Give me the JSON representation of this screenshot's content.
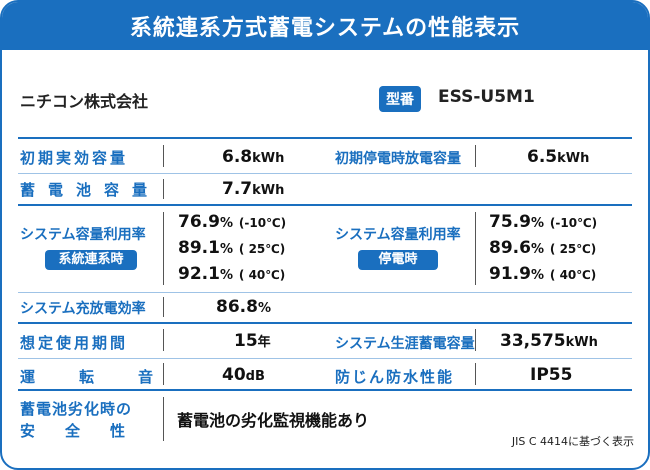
{
  "title": "系統連系方式蓄電システムの性能表示",
  "maker": "ニチコン株式会社",
  "model": {
    "badge": "型番",
    "value": "ESS-U5M1"
  },
  "rows": {
    "initial_capacity": {
      "label": "初期実効容量",
      "value": "6.8",
      "unit": "kWh"
    },
    "initial_outage_capacity": {
      "label": "初期停電時放電容量",
      "value": "6.5",
      "unit": "kWh"
    },
    "battery_capacity": {
      "label": "蓄電池容量",
      "value": "7.7",
      "unit": "kWh"
    },
    "utilization_grid": {
      "label": "システム容量利用率",
      "badge": "系統連系時",
      "values": [
        {
          "pct": "76.9",
          "unit": "%",
          "cond": "(-10℃)"
        },
        {
          "pct": "89.1",
          "unit": "%",
          "cond": "( 25℃)"
        },
        {
          "pct": "92.1",
          "unit": "%",
          "cond": "( 40℃)"
        }
      ]
    },
    "utilization_outage": {
      "label": "システム容量利用率",
      "badge": "停電時",
      "values": [
        {
          "pct": "75.9",
          "unit": "%",
          "cond": "(-10℃)"
        },
        {
          "pct": "89.6",
          "unit": "%",
          "cond": "( 25℃)"
        },
        {
          "pct": "91.9",
          "unit": "%",
          "cond": "( 40℃)"
        }
      ]
    },
    "charge_efficiency": {
      "label": "システム充放電効率",
      "value": "86.8",
      "unit": "%"
    },
    "expected_life": {
      "label": "想定使用期間",
      "value": "15",
      "unit": "年"
    },
    "lifetime_storage": {
      "label": "システム生涯蓄電容量",
      "value": "33,575",
      "unit": "kWh"
    },
    "operating_noise": {
      "label": "運転音",
      "value": "40",
      "unit": "dB"
    },
    "water_resistance": {
      "label": "防じん防水性能",
      "value": "IP55"
    },
    "safety": {
      "label_line1": "蓄電池劣化時の",
      "label_line2": "安全性",
      "value": "蓄電池の劣化監視機能あり"
    }
  },
  "footnote": "JIS C 4414に基づく表示"
}
